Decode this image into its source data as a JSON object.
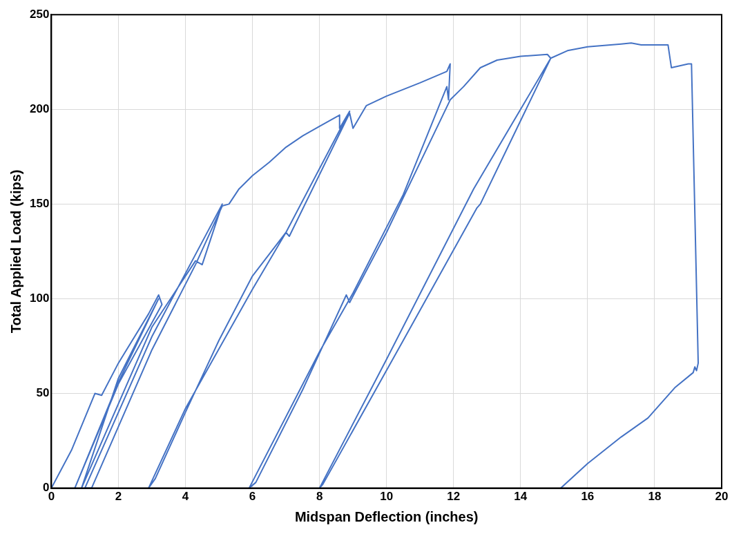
{
  "chart_data": {
    "type": "line",
    "xlabel": "Midspan Deflection (inches)",
    "ylabel": "Total Applied Load (kips)",
    "x": [
      0,
      0.6,
      1.3,
      1.5,
      2,
      2.9,
      3.2,
      3.3,
      2,
      0.7,
      2,
      3.2,
      2,
      0.9,
      3,
      4.3,
      4.5,
      5.1,
      3,
      1,
      1.2,
      3,
      4.3,
      5.1,
      5.3,
      5.6,
      6,
      6.5,
      7,
      7.5,
      8,
      8.6,
      8.6,
      8.9,
      7,
      6,
      4,
      2.9,
      3.1,
      4,
      5,
      6,
      7,
      7.1,
      8.9,
      9,
      9.2,
      9.4,
      10,
      11,
      11.8,
      11.9,
      11.85,
      11.8,
      10.5,
      9,
      8,
      5.9,
      6.1,
      7.5,
      8.8,
      8.9,
      10,
      11.9,
      12.3,
      12.8,
      13.3,
      14,
      14.8,
      14.9,
      12.6,
      10,
      8,
      8.1,
      10.5,
      12.7,
      12.8,
      14.9,
      15.4,
      16,
      17,
      17.3,
      17.6,
      18.4,
      18.5,
      19,
      19.1,
      19.3,
      19.25,
      19.2,
      19.15,
      18.6,
      17.8,
      17,
      16,
      15.2
    ],
    "values": [
      0,
      20,
      50,
      49,
      66,
      92,
      102,
      97,
      55,
      0,
      56,
      100,
      58,
      0,
      85,
      120,
      118,
      150,
      80,
      0,
      0,
      73,
      118,
      149,
      150,
      158,
      165,
      172,
      180,
      186,
      191,
      197,
      190,
      199,
      135,
      105,
      42,
      0,
      5,
      40,
      78,
      112,
      135,
      133,
      198,
      190,
      196,
      202,
      207,
      214,
      220,
      224,
      205,
      212,
      155,
      103,
      72,
      0,
      3,
      52,
      102,
      98,
      135,
      205,
      212,
      222,
      226,
      228,
      229,
      227,
      158,
      68,
      0,
      2,
      78,
      148,
      150,
      227,
      231,
      233,
      234.5,
      235,
      234,
      234,
      222,
      224,
      224,
      66,
      62,
      64,
      61,
      53,
      37,
      27,
      13,
      0
    ],
    "color": "#4472c4",
    "marker": "none",
    "xlim": [
      0,
      20
    ],
    "ylim": [
      0,
      250
    ],
    "xticks": [
      0,
      2,
      4,
      6,
      8,
      10,
      12,
      14,
      16,
      18,
      20
    ],
    "yticks": [
      0,
      50,
      100,
      150,
      200,
      250
    ],
    "grid": true
  }
}
